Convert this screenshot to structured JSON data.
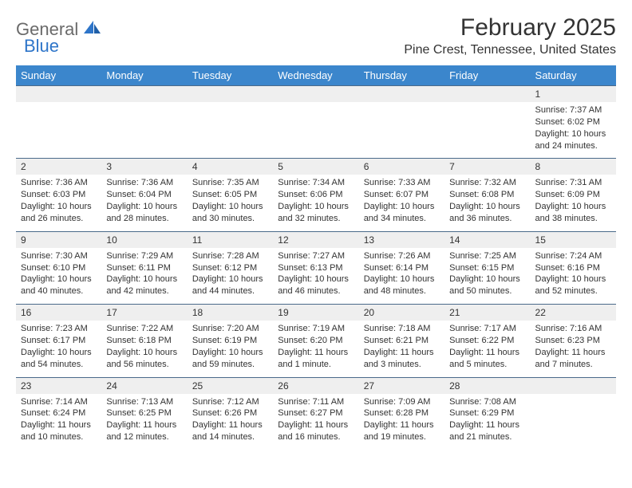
{
  "brand": {
    "text1": "General",
    "text2": "Blue"
  },
  "title": "February 2025",
  "location": "Pine Crest, Tennessee, United States",
  "colors": {
    "header_bg": "#3b86cc",
    "header_text": "#ffffff",
    "daynum_bg": "#efefef",
    "border": "#4a6a8a",
    "body_text": "#333333",
    "logo_gray": "#6a6a6a",
    "logo_blue": "#2e75c9"
  },
  "weekdays": [
    "Sunday",
    "Monday",
    "Tuesday",
    "Wednesday",
    "Thursday",
    "Friday",
    "Saturday"
  ],
  "weeks": [
    [
      null,
      null,
      null,
      null,
      null,
      null,
      {
        "d": "1",
        "sr": "7:37 AM",
        "ss": "6:02 PM",
        "dl": "10 hours and 24 minutes."
      }
    ],
    [
      {
        "d": "2",
        "sr": "7:36 AM",
        "ss": "6:03 PM",
        "dl": "10 hours and 26 minutes."
      },
      {
        "d": "3",
        "sr": "7:36 AM",
        "ss": "6:04 PM",
        "dl": "10 hours and 28 minutes."
      },
      {
        "d": "4",
        "sr": "7:35 AM",
        "ss": "6:05 PM",
        "dl": "10 hours and 30 minutes."
      },
      {
        "d": "5",
        "sr": "7:34 AM",
        "ss": "6:06 PM",
        "dl": "10 hours and 32 minutes."
      },
      {
        "d": "6",
        "sr": "7:33 AM",
        "ss": "6:07 PM",
        "dl": "10 hours and 34 minutes."
      },
      {
        "d": "7",
        "sr": "7:32 AM",
        "ss": "6:08 PM",
        "dl": "10 hours and 36 minutes."
      },
      {
        "d": "8",
        "sr": "7:31 AM",
        "ss": "6:09 PM",
        "dl": "10 hours and 38 minutes."
      }
    ],
    [
      {
        "d": "9",
        "sr": "7:30 AM",
        "ss": "6:10 PM",
        "dl": "10 hours and 40 minutes."
      },
      {
        "d": "10",
        "sr": "7:29 AM",
        "ss": "6:11 PM",
        "dl": "10 hours and 42 minutes."
      },
      {
        "d": "11",
        "sr": "7:28 AM",
        "ss": "6:12 PM",
        "dl": "10 hours and 44 minutes."
      },
      {
        "d": "12",
        "sr": "7:27 AM",
        "ss": "6:13 PM",
        "dl": "10 hours and 46 minutes."
      },
      {
        "d": "13",
        "sr": "7:26 AM",
        "ss": "6:14 PM",
        "dl": "10 hours and 48 minutes."
      },
      {
        "d": "14",
        "sr": "7:25 AM",
        "ss": "6:15 PM",
        "dl": "10 hours and 50 minutes."
      },
      {
        "d": "15",
        "sr": "7:24 AM",
        "ss": "6:16 PM",
        "dl": "10 hours and 52 minutes."
      }
    ],
    [
      {
        "d": "16",
        "sr": "7:23 AM",
        "ss": "6:17 PM",
        "dl": "10 hours and 54 minutes."
      },
      {
        "d": "17",
        "sr": "7:22 AM",
        "ss": "6:18 PM",
        "dl": "10 hours and 56 minutes."
      },
      {
        "d": "18",
        "sr": "7:20 AM",
        "ss": "6:19 PM",
        "dl": "10 hours and 59 minutes."
      },
      {
        "d": "19",
        "sr": "7:19 AM",
        "ss": "6:20 PM",
        "dl": "11 hours and 1 minute."
      },
      {
        "d": "20",
        "sr": "7:18 AM",
        "ss": "6:21 PM",
        "dl": "11 hours and 3 minutes."
      },
      {
        "d": "21",
        "sr": "7:17 AM",
        "ss": "6:22 PM",
        "dl": "11 hours and 5 minutes."
      },
      {
        "d": "22",
        "sr": "7:16 AM",
        "ss": "6:23 PM",
        "dl": "11 hours and 7 minutes."
      }
    ],
    [
      {
        "d": "23",
        "sr": "7:14 AM",
        "ss": "6:24 PM",
        "dl": "11 hours and 10 minutes."
      },
      {
        "d": "24",
        "sr": "7:13 AM",
        "ss": "6:25 PM",
        "dl": "11 hours and 12 minutes."
      },
      {
        "d": "25",
        "sr": "7:12 AM",
        "ss": "6:26 PM",
        "dl": "11 hours and 14 minutes."
      },
      {
        "d": "26",
        "sr": "7:11 AM",
        "ss": "6:27 PM",
        "dl": "11 hours and 16 minutes."
      },
      {
        "d": "27",
        "sr": "7:09 AM",
        "ss": "6:28 PM",
        "dl": "11 hours and 19 minutes."
      },
      {
        "d": "28",
        "sr": "7:08 AM",
        "ss": "6:29 PM",
        "dl": "11 hours and 21 minutes."
      },
      null
    ]
  ],
  "labels": {
    "sunrise": "Sunrise:",
    "sunset": "Sunset:",
    "daylight": "Daylight:"
  }
}
